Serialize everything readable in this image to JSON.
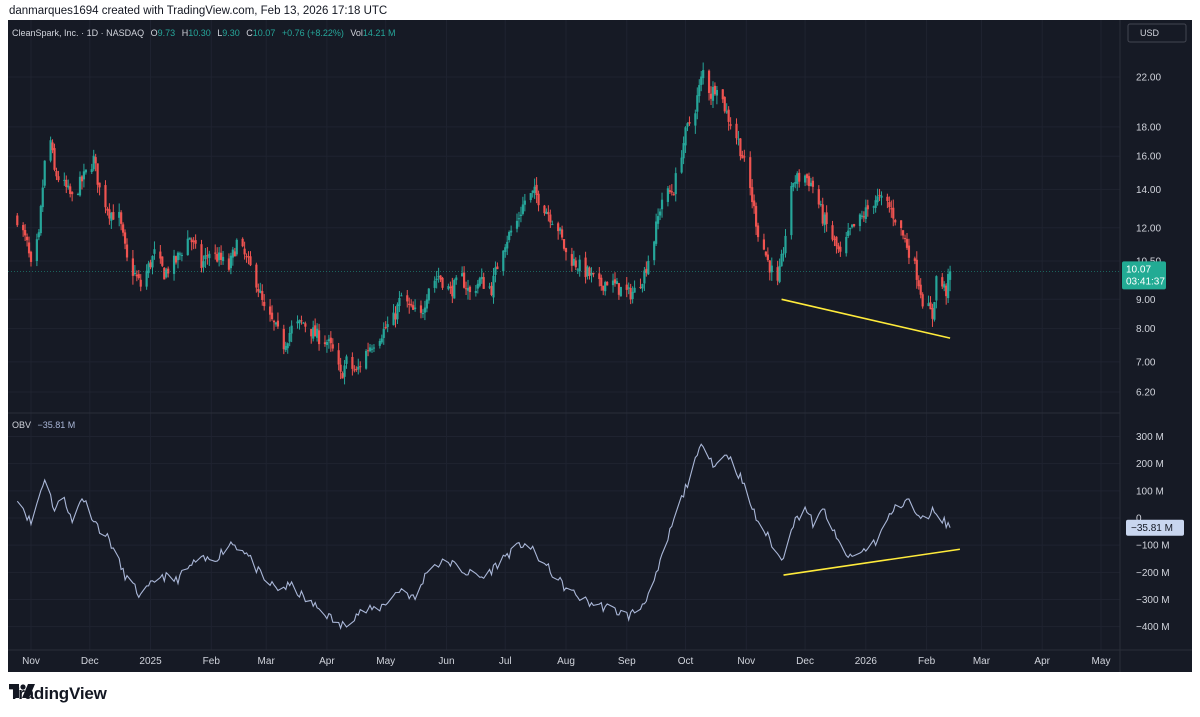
{
  "attribution": "danmarques1694 created with TradingView.com, Feb 13, 2026 17:18 UTC",
  "brand": "TradingView",
  "chart_data": [
    {
      "type": "candlestick",
      "symbol": "CleanSpark, Inc.",
      "interval": "1D",
      "exchange": "NASDAQ",
      "ohlc": {
        "o": "9.73",
        "h": "10.30",
        "l": "9.30",
        "c": "10.07",
        "chg": "+0.76 (+8.22%)"
      },
      "volume": "14.21 M",
      "currency": "USD",
      "scale": "log",
      "last_price": "10.07",
      "countdown": "03:41:37",
      "y_ticks": [
        "22.00",
        "18.00",
        "16.00",
        "14.00",
        "12.00",
        "10.50",
        "9.00",
        "8.00",
        "7.00",
        "6.20"
      ],
      "x_ticks": [
        "Nov",
        "Dec",
        "2025",
        "Feb",
        "Mar",
        "Apr",
        "May",
        "Jun",
        "Jul",
        "Aug",
        "Sep",
        "Oct",
        "Nov",
        "Dec",
        "2026",
        "Feb",
        "Mar",
        "Apr",
        "May"
      ],
      "close_series": [
        {
          "date": "2024-10-25",
          "close": 12.5
        },
        {
          "date": "2024-10-30",
          "close": 11.2
        },
        {
          "date": "2024-11-01",
          "close": 10.2
        },
        {
          "date": "2024-11-05",
          "close": 11.5
        },
        {
          "date": "2024-11-08",
          "close": 15.5
        },
        {
          "date": "2024-11-11",
          "close": 17.0
        },
        {
          "date": "2024-11-13",
          "close": 15.0
        },
        {
          "date": "2024-11-18",
          "close": 14.2
        },
        {
          "date": "2024-11-22",
          "close": 13.5
        },
        {
          "date": "2024-11-27",
          "close": 14.5
        },
        {
          "date": "2024-12-03",
          "close": 15.8
        },
        {
          "date": "2024-12-06",
          "close": 14.0
        },
        {
          "date": "2024-12-11",
          "close": 12.8
        },
        {
          "date": "2024-12-16",
          "close": 12.5
        },
        {
          "date": "2024-12-20",
          "close": 10.5
        },
        {
          "date": "2024-12-27",
          "close": 9.5
        },
        {
          "date": "2025-01-03",
          "close": 10.8
        },
        {
          "date": "2025-01-08",
          "close": 10.0
        },
        {
          "date": "2025-01-14",
          "close": 10.5
        },
        {
          "date": "2025-01-21",
          "close": 11.6
        },
        {
          "date": "2025-01-27",
          "close": 10.3
        },
        {
          "date": "2025-01-31",
          "close": 10.9
        },
        {
          "date": "2025-02-05",
          "close": 10.6
        },
        {
          "date": "2025-02-10",
          "close": 10.2
        },
        {
          "date": "2025-02-14",
          "close": 11.3
        },
        {
          "date": "2025-02-18",
          "close": 10.7
        },
        {
          "date": "2025-02-24",
          "close": 9.7
        },
        {
          "date": "2025-02-28",
          "close": 8.6
        },
        {
          "date": "2025-03-05",
          "close": 8.1
        },
        {
          "date": "2025-03-10",
          "close": 7.5
        },
        {
          "date": "2025-03-14",
          "close": 8.0
        },
        {
          "date": "2025-03-20",
          "close": 8.2
        },
        {
          "date": "2025-03-26",
          "close": 7.8
        },
        {
          "date": "2025-04-01",
          "close": 7.6
        },
        {
          "date": "2025-04-04",
          "close": 7.3
        },
        {
          "date": "2025-04-08",
          "close": 6.6
        },
        {
          "date": "2025-04-11",
          "close": 7.0
        },
        {
          "date": "2025-04-16",
          "close": 6.7
        },
        {
          "date": "2025-04-22",
          "close": 7.4
        },
        {
          "date": "2025-04-28",
          "close": 7.8
        },
        {
          "date": "2025-05-05",
          "close": 8.3
        },
        {
          "date": "2025-05-09",
          "close": 9.1
        },
        {
          "date": "2025-05-14",
          "close": 8.6
        },
        {
          "date": "2025-05-19",
          "close": 8.4
        },
        {
          "date": "2025-05-23",
          "close": 9.5
        },
        {
          "date": "2025-05-28",
          "close": 9.9
        },
        {
          "date": "2025-06-03",
          "close": 9.3
        },
        {
          "date": "2025-06-09",
          "close": 9.8
        },
        {
          "date": "2025-06-13",
          "close": 9.2
        },
        {
          "date": "2025-06-18",
          "close": 9.7
        },
        {
          "date": "2025-06-24",
          "close": 9.4
        },
        {
          "date": "2025-06-30",
          "close": 11.2
        },
        {
          "date": "2025-07-07",
          "close": 12.3
        },
        {
          "date": "2025-07-11",
          "close": 13.4
        },
        {
          "date": "2025-07-16",
          "close": 13.8
        },
        {
          "date": "2025-07-22",
          "close": 12.9
        },
        {
          "date": "2025-07-28",
          "close": 12.0
        },
        {
          "date": "2025-08-01",
          "close": 10.8
        },
        {
          "date": "2025-08-06",
          "close": 10.4
        },
        {
          "date": "2025-08-12",
          "close": 10.0
        },
        {
          "date": "2025-08-18",
          "close": 9.5
        },
        {
          "date": "2025-08-22",
          "close": 9.7
        },
        {
          "date": "2025-08-28",
          "close": 9.4
        },
        {
          "date": "2025-09-02",
          "close": 9.2
        },
        {
          "date": "2025-09-05",
          "close": 9.3
        },
        {
          "date": "2025-09-10",
          "close": 10.0
        },
        {
          "date": "2025-09-15",
          "close": 11.5
        },
        {
          "date": "2025-09-19",
          "close": 13.5
        },
        {
          "date": "2025-09-25",
          "close": 14.0
        },
        {
          "date": "2025-10-01",
          "close": 17.5
        },
        {
          "date": "2025-10-06",
          "close": 19.5
        },
        {
          "date": "2025-10-10",
          "close": 22.5
        },
        {
          "date": "2025-10-14",
          "close": 20.5
        },
        {
          "date": "2025-10-17",
          "close": 21.5
        },
        {
          "date": "2025-10-22",
          "close": 19.0
        },
        {
          "date": "2025-10-28",
          "close": 17.0
        },
        {
          "date": "2025-11-03",
          "close": 14.0
        },
        {
          "date": "2025-11-07",
          "close": 11.8
        },
        {
          "date": "2025-11-12",
          "close": 10.5
        },
        {
          "date": "2025-11-17",
          "close": 9.5
        },
        {
          "date": "2025-11-20",
          "close": 11.0
        },
        {
          "date": "2025-11-25",
          "close": 14.5
        },
        {
          "date": "2025-12-01",
          "close": 14.8
        },
        {
          "date": "2025-12-05",
          "close": 14.2
        },
        {
          "date": "2025-12-10",
          "close": 12.5
        },
        {
          "date": "2025-12-15",
          "close": 11.5
        },
        {
          "date": "2025-12-19",
          "close": 10.7
        },
        {
          "date": "2025-12-24",
          "close": 11.8
        },
        {
          "date": "2025-12-30",
          "close": 12.5
        },
        {
          "date": "2026-01-06",
          "close": 13.5
        },
        {
          "date": "2026-01-12",
          "close": 13.2
        },
        {
          "date": "2026-01-16",
          "close": 12.5
        },
        {
          "date": "2026-01-22",
          "close": 11.2
        },
        {
          "date": "2026-01-27",
          "close": 10.0
        },
        {
          "date": "2026-01-30",
          "close": 9.0
        },
        {
          "date": "2026-02-04",
          "close": 8.4
        },
        {
          "date": "2026-02-06",
          "close": 9.8
        },
        {
          "date": "2026-02-11",
          "close": 9.3
        },
        {
          "date": "2026-02-13",
          "close": 10.07
        }
      ],
      "trendline": {
        "from": {
          "date": "2025-11-19",
          "price": 9.0
        },
        "to": {
          "date": "2026-02-13",
          "price": 7.7
        },
        "color": "#ffeb3b"
      }
    },
    {
      "type": "line",
      "indicator": "OBV",
      "last_value": "−35.81 M",
      "y_ticks": [
        "300 M",
        "200 M",
        "100 M",
        "0",
        "−100 M",
        "−200 M",
        "−300 M",
        "−400 M"
      ],
      "series": [
        {
          "date": "2024-10-25",
          "value": 80
        },
        {
          "date": "2024-11-01",
          "value": -20
        },
        {
          "date": "2024-11-08",
          "value": 150
        },
        {
          "date": "2024-11-13",
          "value": 30
        },
        {
          "date": "2024-11-18",
          "value": 80
        },
        {
          "date": "2024-11-22",
          "value": -20
        },
        {
          "date": "2024-11-27",
          "value": 80
        },
        {
          "date": "2024-12-05",
          "value": -30
        },
        {
          "date": "2024-12-11",
          "value": -80
        },
        {
          "date": "2024-12-18",
          "value": -200
        },
        {
          "date": "2024-12-27",
          "value": -290
        },
        {
          "date": "2025-01-06",
          "value": -210
        },
        {
          "date": "2025-01-14",
          "value": -230
        },
        {
          "date": "2025-01-24",
          "value": -160
        },
        {
          "date": "2025-02-03",
          "value": -150
        },
        {
          "date": "2025-02-11",
          "value": -90
        },
        {
          "date": "2025-02-18",
          "value": -120
        },
        {
          "date": "2025-02-28",
          "value": -230
        },
        {
          "date": "2025-03-07",
          "value": -260
        },
        {
          "date": "2025-03-14",
          "value": -250
        },
        {
          "date": "2025-03-21",
          "value": -300
        },
        {
          "date": "2025-03-31",
          "value": -350
        },
        {
          "date": "2025-04-08",
          "value": -400
        },
        {
          "date": "2025-04-17",
          "value": -350
        },
        {
          "date": "2025-04-28",
          "value": -330
        },
        {
          "date": "2025-05-09",
          "value": -260
        },
        {
          "date": "2025-05-16",
          "value": -300
        },
        {
          "date": "2025-05-23",
          "value": -180
        },
        {
          "date": "2025-06-02",
          "value": -160
        },
        {
          "date": "2025-06-11",
          "value": -200
        },
        {
          "date": "2025-06-20",
          "value": -220
        },
        {
          "date": "2025-07-01",
          "value": -140
        },
        {
          "date": "2025-07-11",
          "value": -90
        },
        {
          "date": "2025-07-21",
          "value": -170
        },
        {
          "date": "2025-08-01",
          "value": -260
        },
        {
          "date": "2025-08-12",
          "value": -310
        },
        {
          "date": "2025-08-22",
          "value": -330
        },
        {
          "date": "2025-09-02",
          "value": -360
        },
        {
          "date": "2025-09-08",
          "value": -330
        },
        {
          "date": "2025-09-15",
          "value": -240
        },
        {
          "date": "2025-09-24",
          "value": -30
        },
        {
          "date": "2025-10-02",
          "value": 130
        },
        {
          "date": "2025-10-10",
          "value": 280
        },
        {
          "date": "2025-10-16",
          "value": 190
        },
        {
          "date": "2025-10-22",
          "value": 240
        },
        {
          "date": "2025-10-29",
          "value": 150
        },
        {
          "date": "2025-11-06",
          "value": 0
        },
        {
          "date": "2025-11-13",
          "value": -80
        },
        {
          "date": "2025-11-19",
          "value": -160
        },
        {
          "date": "2025-11-24",
          "value": -30
        },
        {
          "date": "2025-12-01",
          "value": 40
        },
        {
          "date": "2025-12-05",
          "value": -20
        },
        {
          "date": "2025-12-11",
          "value": 30
        },
        {
          "date": "2025-12-17",
          "value": -80
        },
        {
          "date": "2025-12-24",
          "value": -150
        },
        {
          "date": "2025-12-31",
          "value": -120
        },
        {
          "date": "2026-01-07",
          "value": -80
        },
        {
          "date": "2026-01-14",
          "value": 20
        },
        {
          "date": "2026-01-22",
          "value": 70
        },
        {
          "date": "2026-01-29",
          "value": -10
        },
        {
          "date": "2026-02-05",
          "value": 30
        },
        {
          "date": "2026-02-13",
          "value": -35.81
        }
      ],
      "trendline": {
        "from": {
          "date": "2025-11-20",
          "value": -210
        },
        "to": {
          "date": "2026-02-18",
          "value": -115
        },
        "color": "#ffeb3b"
      }
    }
  ],
  "colors": {
    "up": "#26a69a",
    "down": "#ef5350",
    "obv_line": "#aab7d8",
    "trend": "#ffeb3b",
    "price_tag": "#22ab94"
  }
}
